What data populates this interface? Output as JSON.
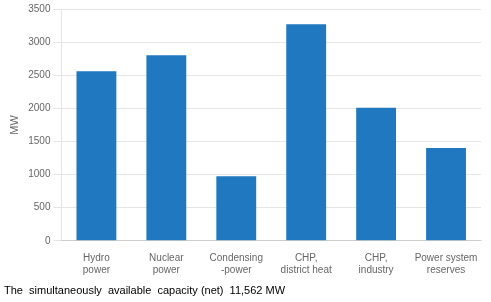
{
  "chart_data": {
    "type": "bar",
    "categories": [
      "Hydro\npower",
      "Nuclear\npower",
      "Condensing\n-power",
      "CHP,\ndistrict heat",
      "CHP,\nindustry",
      "Power system\nreserves"
    ],
    "values": [
      2560,
      2800,
      975,
      3270,
      2010,
      1400
    ],
    "color": "#2079c0",
    "ylabel": "MW",
    "annotations": [
      "The  simultaneously  available  capacity (net)  11,562 MW"
    ],
    "ylim": [
      0,
      3500
    ],
    "yticks": [
      0,
      500,
      1000,
      1500,
      2000,
      2500,
      3000,
      3500
    ],
    "grid": true
  }
}
